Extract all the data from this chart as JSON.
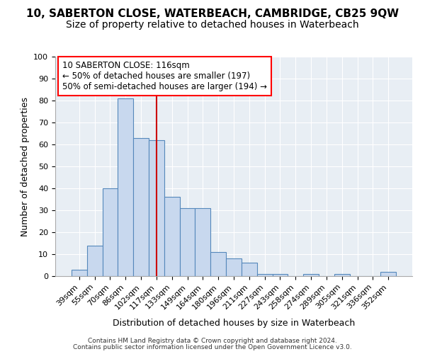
{
  "title1": "10, SABERTON CLOSE, WATERBEACH, CAMBRIDGE, CB25 9QW",
  "title2": "Size of property relative to detached houses in Waterbeach",
  "xlabel": "Distribution of detached houses by size in Waterbeach",
  "ylabel": "Number of detached properties",
  "footer1": "Contains HM Land Registry data © Crown copyright and database right 2024.",
  "footer2": "Contains public sector information licensed under the Open Government Licence v3.0.",
  "bin_labels": [
    "39sqm",
    "55sqm",
    "70sqm",
    "86sqm",
    "102sqm",
    "117sqm",
    "133sqm",
    "149sqm",
    "164sqm",
    "180sqm",
    "196sqm",
    "211sqm",
    "227sqm",
    "243sqm",
    "258sqm",
    "274sqm",
    "289sqm",
    "305sqm",
    "321sqm",
    "336sqm",
    "352sqm"
  ],
  "bar_values": [
    3,
    14,
    40,
    81,
    63,
    62,
    36,
    31,
    31,
    11,
    8,
    6,
    1,
    1,
    0,
    1,
    0,
    1,
    0,
    0,
    2
  ],
  "bar_color": "#c8d8ee",
  "bar_edge_color": "#5588bb",
  "vline_x_index": 5,
  "vline_color": "#cc0000",
  "annotation_text1": "10 SABERTON CLOSE: 116sqm",
  "annotation_text2": "← 50% of detached houses are smaller (197)",
  "annotation_text3": "50% of semi-detached houses are larger (194) →",
  "ylim": [
    0,
    100
  ],
  "fig_bg_color": "#ffffff",
  "plot_bg_color": "#e8eef4",
  "grid_color": "#ffffff",
  "title1_fontsize": 11,
  "title2_fontsize": 10
}
